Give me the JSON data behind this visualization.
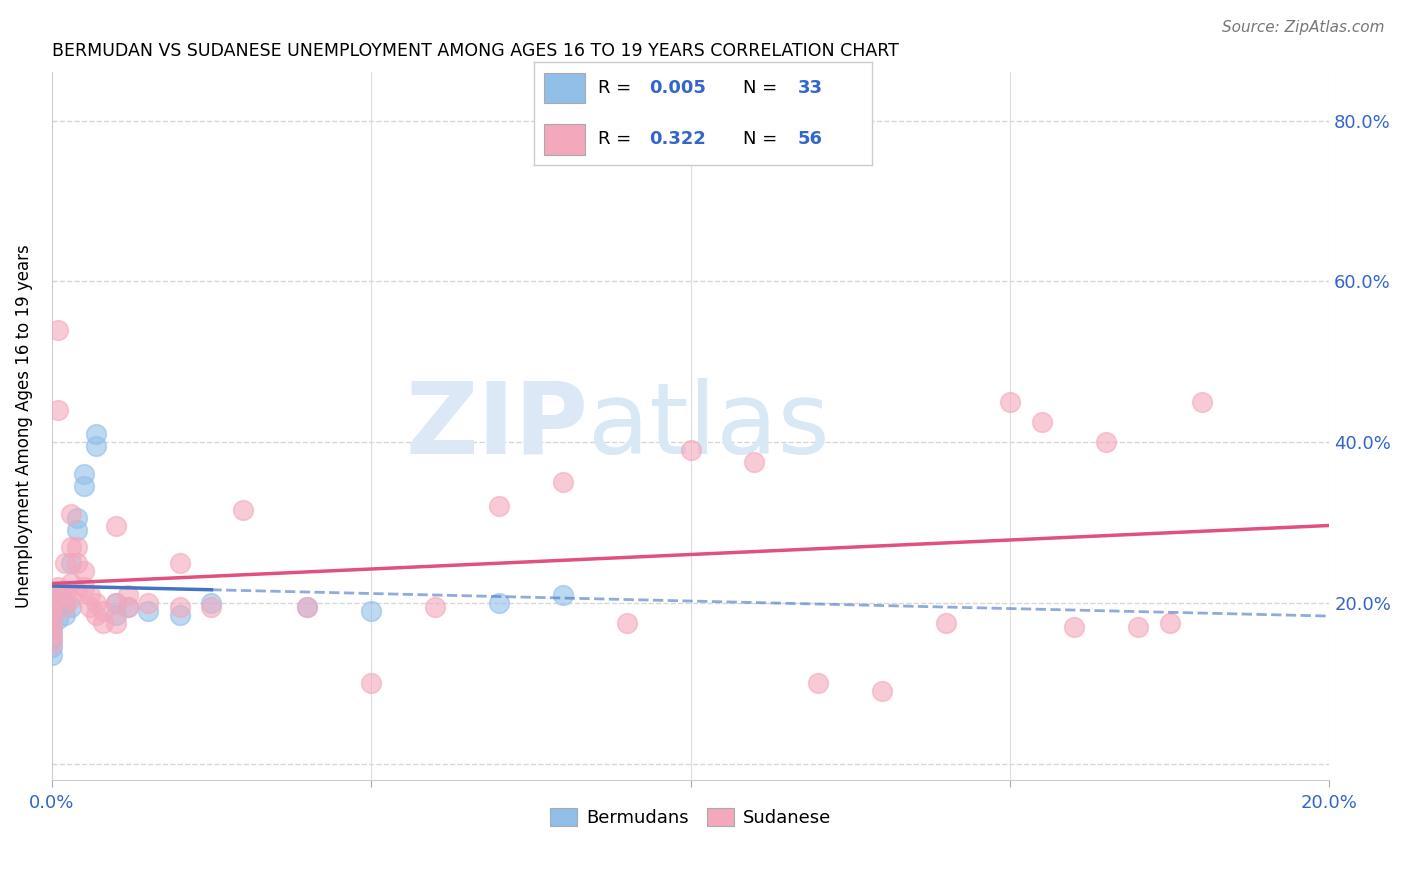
{
  "title": "BERMUDAN VS SUDANESE UNEMPLOYMENT AMONG AGES 16 TO 19 YEARS CORRELATION CHART",
  "source": "Source: ZipAtlas.com",
  "ylabel": "Unemployment Among Ages 16 to 19 years",
  "xlim": [
    0.0,
    0.2
  ],
  "ylim": [
    -0.02,
    0.86
  ],
  "yticks": [
    0.0,
    0.2,
    0.4,
    0.6,
    0.8
  ],
  "ytick_labels": [
    "",
    "20.0%",
    "40.0%",
    "60.0%",
    "80.0%"
  ],
  "xticks": [
    0.0,
    0.05,
    0.1,
    0.15,
    0.2
  ],
  "xtick_labels": [
    "0.0%",
    "",
    "",
    "",
    "20.0%"
  ],
  "bermudans_color": "#92bfe8",
  "sudanese_color": "#f4a8bc",
  "bermudans_line_color": "#4472c4",
  "sudanese_line_color": "#e05080",
  "watermark_color": "#dce8f5",
  "bermudans_x": [
    0.0,
    0.0,
    0.0,
    0.0,
    0.0,
    0.0,
    0.0,
    0.0,
    0.0,
    0.0,
    0.001,
    0.001,
    0.001,
    0.002,
    0.002,
    0.003,
    0.003,
    0.004,
    0.004,
    0.005,
    0.005,
    0.007,
    0.007,
    0.01,
    0.01,
    0.012,
    0.015,
    0.02,
    0.025,
    0.04,
    0.05,
    0.07,
    0.08
  ],
  "bermudans_y": [
    0.205,
    0.2,
    0.195,
    0.19,
    0.185,
    0.175,
    0.165,
    0.155,
    0.145,
    0.135,
    0.21,
    0.195,
    0.18,
    0.2,
    0.185,
    0.25,
    0.195,
    0.305,
    0.29,
    0.36,
    0.345,
    0.41,
    0.395,
    0.2,
    0.185,
    0.195,
    0.19,
    0.185,
    0.2,
    0.195,
    0.19,
    0.2,
    0.21
  ],
  "sudanese_x": [
    0.0,
    0.0,
    0.0,
    0.0,
    0.0,
    0.0,
    0.0,
    0.001,
    0.001,
    0.001,
    0.002,
    0.002,
    0.002,
    0.003,
    0.003,
    0.003,
    0.003,
    0.004,
    0.004,
    0.004,
    0.005,
    0.005,
    0.006,
    0.006,
    0.007,
    0.007,
    0.008,
    0.008,
    0.01,
    0.01,
    0.01,
    0.012,
    0.012,
    0.015,
    0.02,
    0.02,
    0.025,
    0.03,
    0.04,
    0.05,
    0.06,
    0.07,
    0.08,
    0.09,
    0.1,
    0.11,
    0.12,
    0.13,
    0.14,
    0.15,
    0.155,
    0.16,
    0.165,
    0.17,
    0.175,
    0.18
  ],
  "sudanese_y": [
    0.21,
    0.2,
    0.19,
    0.18,
    0.17,
    0.16,
    0.15,
    0.54,
    0.44,
    0.22,
    0.25,
    0.21,
    0.195,
    0.31,
    0.27,
    0.225,
    0.205,
    0.27,
    0.25,
    0.215,
    0.24,
    0.22,
    0.21,
    0.195,
    0.2,
    0.185,
    0.19,
    0.175,
    0.295,
    0.2,
    0.175,
    0.21,
    0.195,
    0.2,
    0.25,
    0.195,
    0.195,
    0.315,
    0.195,
    0.1,
    0.195,
    0.32,
    0.35,
    0.175,
    0.39,
    0.375,
    0.1,
    0.09,
    0.175,
    0.45,
    0.425,
    0.17,
    0.4,
    0.17,
    0.175,
    0.45
  ]
}
